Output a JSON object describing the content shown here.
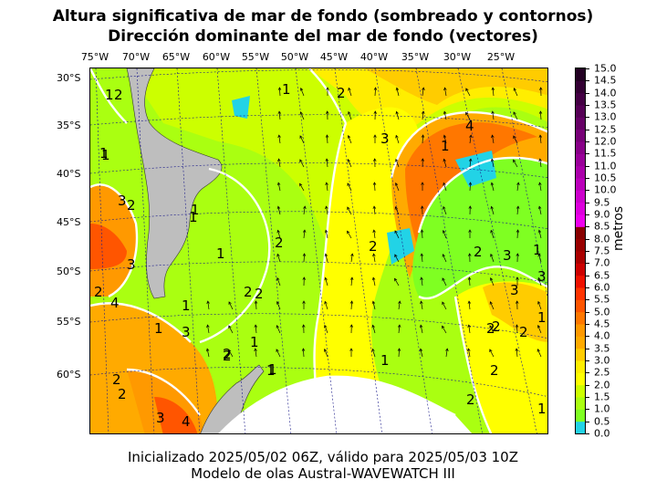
{
  "header": {
    "title_line1": "Altura significativa de mar de fondo (sombreado y contornos)",
    "title_line2": "Dirección dominante del mar de fondo (vectores)"
  },
  "footer": {
    "line1": "Inicializado 2025/05/02 06Z, válido para 2025/05/03 10Z",
    "line2": "Modelo de olas Austral-WAVEWATCH III"
  },
  "map": {
    "lon_labels": [
      "75°W",
      "70°W",
      "65°W",
      "60°W",
      "55°W",
      "50°W",
      "45°W",
      "40°W",
      "35°W",
      "30°W",
      "25°W"
    ],
    "lat_labels": [
      "30°S",
      "35°S",
      "40°S",
      "45°S",
      "50°S",
      "55°S",
      "60°S"
    ],
    "contour_labels": [
      "2",
      "1",
      "1",
      "2",
      "4",
      "1",
      "3",
      "1",
      "1",
      "2",
      "1",
      "2",
      "3",
      "1",
      "2",
      "2",
      "3",
      "1",
      "2",
      "1",
      "3",
      "4",
      "2",
      "1",
      "1",
      "3",
      "2",
      "1",
      "1",
      "2",
      "2",
      "3",
      "4",
      "2",
      "1",
      "3",
      "2",
      "3",
      "2",
      "2",
      "1",
      "2",
      "2",
      "1",
      "1",
      "2"
    ],
    "land_color": "#bebebe",
    "antarctic_color": "#ffffff"
  },
  "colorbar": {
    "label": "metros",
    "ticks": [
      "15.0",
      "14.5",
      "14.0",
      "13.5",
      "13.0",
      "12.5",
      "12.0",
      "11.5",
      "11.0",
      "10.5",
      "10.0",
      "9.5",
      "9.0",
      "8.5",
      "8.0",
      "7.5",
      "7.0",
      "6.5",
      "6.0",
      "5.5",
      "5.0",
      "4.5",
      "4.0",
      "3.5",
      "3.0",
      "2.5",
      "2.0",
      "1.5",
      "1.0",
      "0.5",
      "0.0"
    ],
    "colors_bottom_to_top": [
      "#22d3e6",
      "#7fff22",
      "#aaff11",
      "#ccff00",
      "#ffff00",
      "#ffee00",
      "#ffcc00",
      "#ffaa00",
      "#ff9900",
      "#ff7700",
      "#ff5500",
      "#ff3300",
      "#ee1100",
      "#cc0000",
      "#aa0000",
      "#990000",
      "#880000",
      "#ee00ee",
      "#dd00dd",
      "#cc00cc",
      "#bb00bb",
      "#aa00aa",
      "#990099",
      "#880088",
      "#770077",
      "#660066",
      "#550055",
      "#440044",
      "#330033",
      "#220022"
    ]
  }
}
